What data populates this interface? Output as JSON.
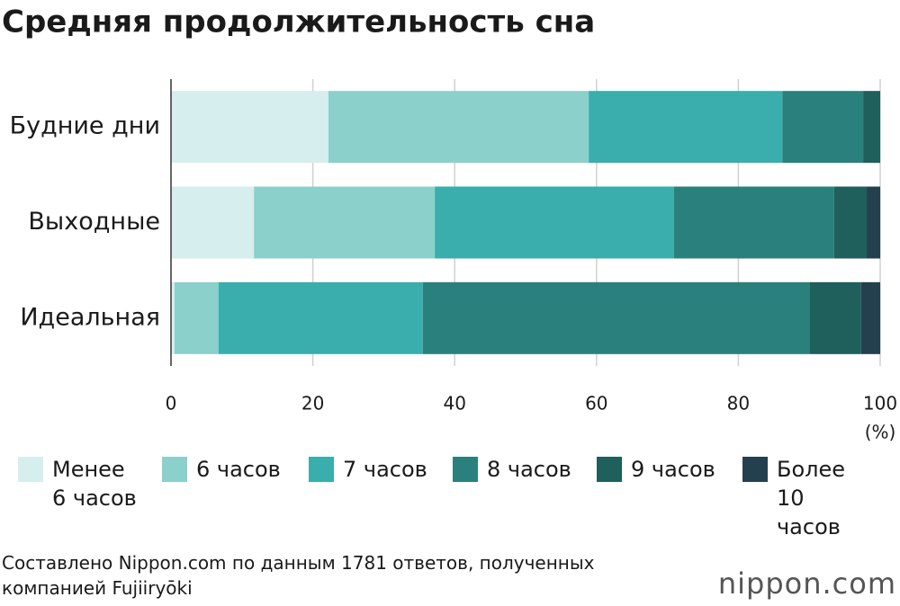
{
  "chart_data": {
    "type": "stacked-barh",
    "title": "Средняя продолжительность сна",
    "categories": [
      "Будние дни",
      "Выходные",
      "Идеальная"
    ],
    "series": [
      {
        "name": "Менее 6 часов",
        "color": "#d6eeee",
        "values": [
          22.2,
          11.7,
          0.5
        ]
      },
      {
        "name": "6 часов",
        "color": "#8bd0cb",
        "values": [
          36.7,
          25.5,
          6.2
        ]
      },
      {
        "name": "7 часов",
        "color": "#3aaeac",
        "values": [
          27.3,
          33.7,
          28.8
        ]
      },
      {
        "name": "8 часов",
        "color": "#2a807c",
        "values": [
          11.4,
          22.6,
          54.6
        ]
      },
      {
        "name": "9 часов",
        "color": "#1f5f5c",
        "values": [
          2.4,
          4.6,
          7.2
        ]
      },
      {
        "name": "Более 10 часов",
        "color": "#24404f",
        "values": [
          0,
          1.9,
          2.7
        ]
      }
    ],
    "xlim": [
      0,
      100
    ],
    "xticks": [
      0,
      20,
      40,
      60,
      80,
      100
    ],
    "xlabel": "(%)",
    "grid": true,
    "source": "Составлено Nippon.com по данным 1781 ответов, полученных компанией Fujiiryōki",
    "logo": "nippon.com"
  }
}
